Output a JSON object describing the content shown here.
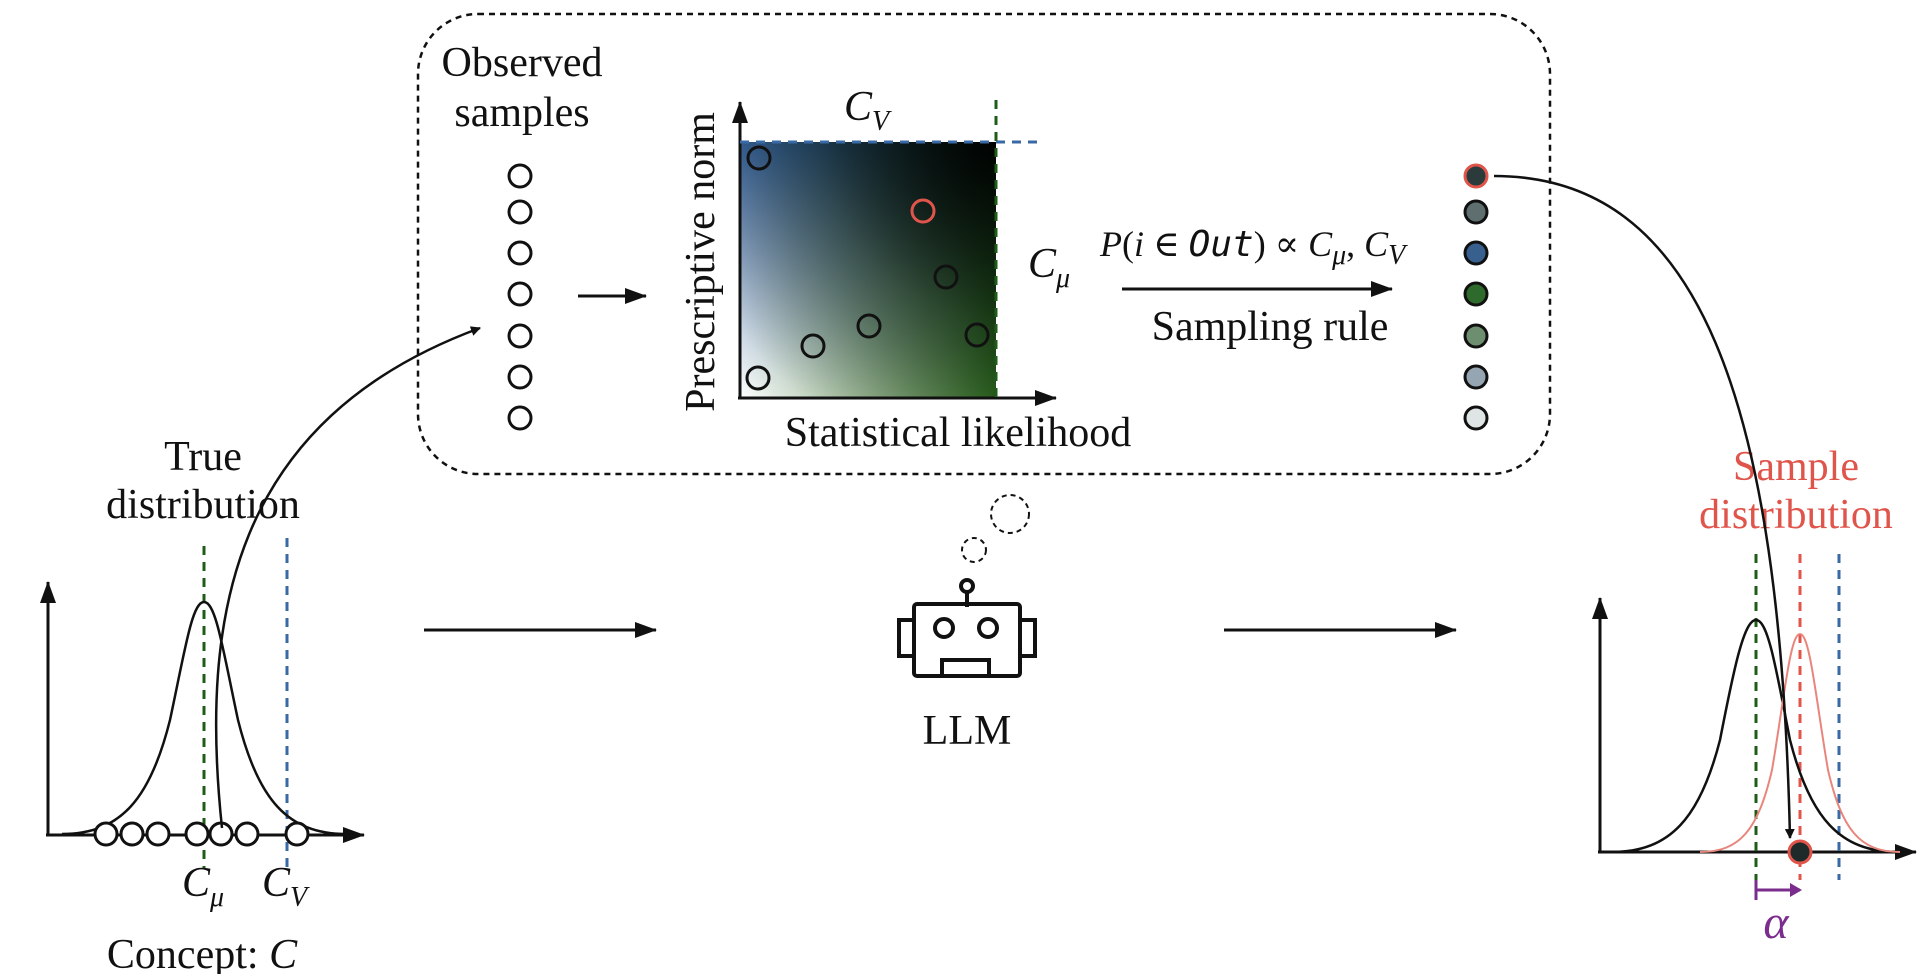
{
  "labels": {
    "observed_samples_line1": "Observed",
    "observed_samples_line2": "samples",
    "y_axis": "Prescriptive norm",
    "x_axis": "Statistical likelihood",
    "c": "C",
    "mu": "μ",
    "v": "V",
    "sampling_rule": "Sampling rule",
    "formula_p": "P",
    "formula_open": "(",
    "formula_i": "i",
    "formula_in": " ∈ ",
    "formula_out": "Out",
    "formula_close": ") ∝ ",
    "formula_comma": ", ",
    "true_dist_line1": "True",
    "true_dist_line2": "distribution",
    "sample_dist_line1": "Sample",
    "sample_dist_line2": "distribution",
    "llm": "LLM",
    "concept": "Concept: ",
    "concept_symbol": "C",
    "alpha": "α"
  },
  "colors": {
    "green": "#1f5c1a",
    "blue": "#3a6aa6",
    "red": "#e0554b",
    "purple": "#7b2d8e",
    "black": "#111111"
  },
  "sampled_dot_colors": [
    "#2b3a3a",
    "#5f6e6e",
    "#38608f",
    "#2e6a2c",
    "#6e8e70",
    "#95a5b2",
    "#dfe5e4"
  ]
}
